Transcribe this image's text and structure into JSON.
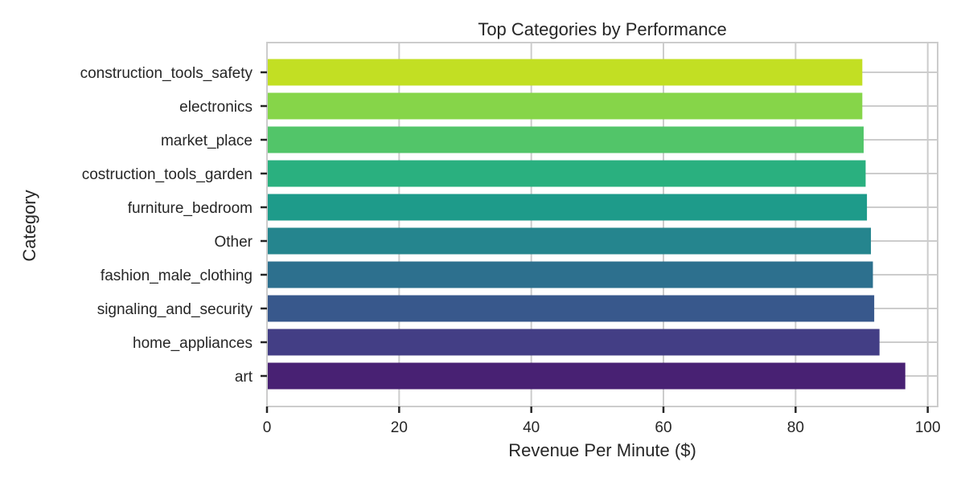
{
  "chart_data": {
    "type": "bar",
    "orientation": "horizontal",
    "title": "Top Categories by Performance",
    "xlabel": "Revenue Per Minute ($)",
    "ylabel": "Category",
    "xlim": [
      0,
      101.5
    ],
    "xticks": [
      0,
      20,
      40,
      60,
      80,
      100
    ],
    "grid": true,
    "categories": [
      "construction_tools_safety",
      "electronics",
      "market_place",
      "costruction_tools_garden",
      "furniture_bedroom",
      "Other",
      "fashion_male_clothing",
      "signaling_and_security",
      "home_appliances",
      "art"
    ],
    "values": [
      90.1,
      90.1,
      90.3,
      90.6,
      90.8,
      91.4,
      91.7,
      91.9,
      92.7,
      96.6
    ],
    "colors": [
      "#c2df23",
      "#86d549",
      "#52c569",
      "#2ab07f",
      "#1e9b8a",
      "#25858e",
      "#2d708e",
      "#38588c",
      "#433e85",
      "#482173"
    ]
  }
}
